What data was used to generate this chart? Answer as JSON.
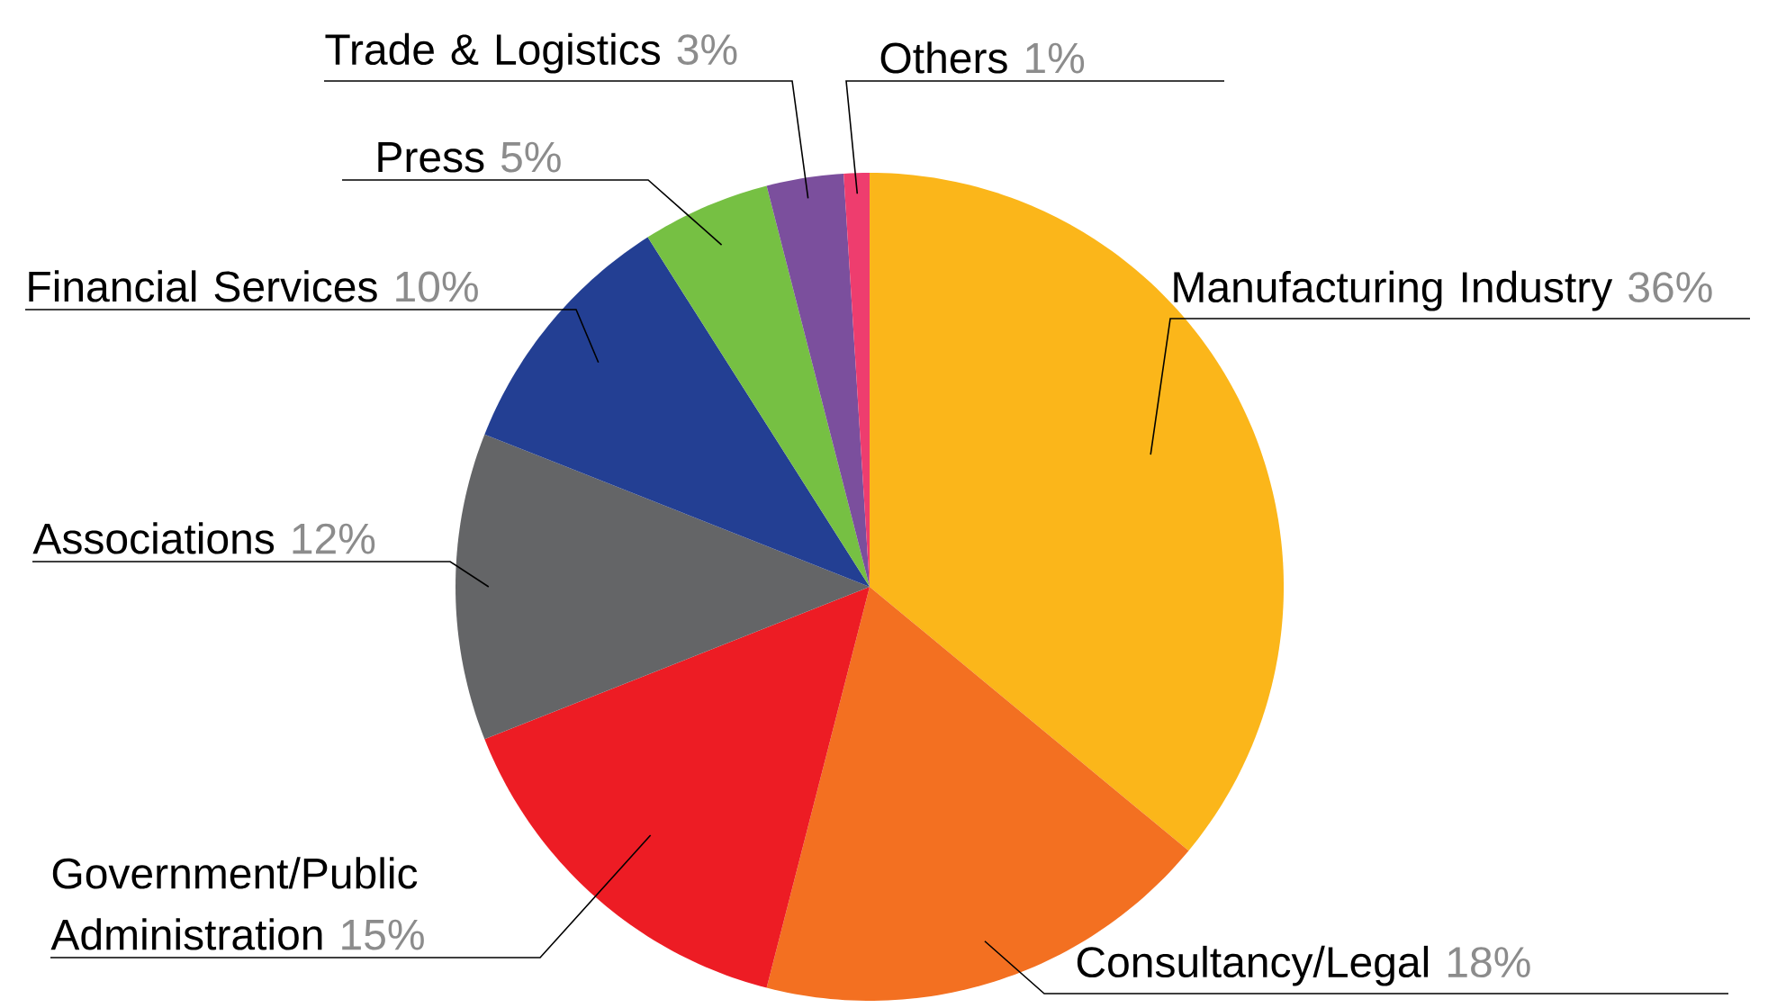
{
  "chart_data": {
    "type": "pie",
    "categories": [
      "Manufacturing Industry",
      "Consultancy/Legal",
      "Government/Public Administration",
      "Associations",
      "Financial Services",
      "Press",
      "Trade & Logistics",
      "Others"
    ],
    "values": [
      36,
      18,
      15,
      12,
      10,
      5,
      3,
      1
    ],
    "value_labels": [
      "36%",
      "18%",
      "15%",
      "12%",
      "10%",
      "5%",
      "3%",
      "1%"
    ],
    "colors": [
      "#fbb61a",
      "#f37021",
      "#ed1c24",
      "#646567",
      "#233f93",
      "#76c043",
      "#7b4f9d",
      "#ee3d6e"
    ]
  }
}
